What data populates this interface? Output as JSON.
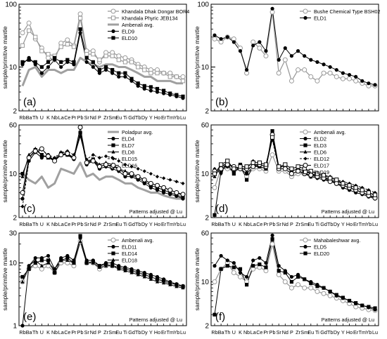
{
  "figure": {
    "xticks": [
      "Rb",
      "Ba",
      "Th",
      "U",
      "K",
      "Nb",
      "La",
      "Ce",
      "Pr",
      "Pb",
      "Sr",
      "Nd",
      "P",
      "Zr",
      "Sm",
      "Eu",
      "Ti",
      "Gd",
      "Tb",
      "Dy",
      "Y",
      "Ho",
      "Er",
      "Tm",
      "Yb",
      "Lu"
    ],
    "ylabel": "sample/primitive mantle",
    "note": "Patterns adjusted @ Lu"
  },
  "chart_data": [
    {
      "type": "line",
      "panel": "(a)",
      "yscale": "log",
      "ylim": [
        2,
        100
      ],
      "yticks": [
        {
          "v": 2,
          "label": "2"
        },
        {
          "v": 10,
          "label": "10"
        },
        {
          "v": 100,
          "label": "100"
        }
      ],
      "show_xticks": true,
      "note": "",
      "series": [
        {
          "name": "Khandala Dhak Dongar BOR4",
          "style": "gray",
          "marker": "open-circle",
          "values": [
            35,
            50,
            28,
            20,
            14,
            13,
            24,
            27,
            22,
            70,
            18,
            18,
            12,
            17,
            17,
            15,
            14,
            13,
            11,
            10,
            9,
            9,
            8,
            8,
            7,
            7
          ]
        },
        {
          "name": "Khandala Phyric JEB134",
          "style": "gray",
          "marker": "open-square",
          "values": [
            22,
            38,
            30,
            18,
            16,
            15,
            21,
            23,
            21,
            60,
            16,
            16,
            13,
            15,
            15,
            13,
            12,
            12,
            10,
            9,
            8,
            8,
            8,
            7,
            7,
            6
          ]
        },
        {
          "name": "Ambenali avg.",
          "style": "thick-gray",
          "marker": "none",
          "values": [
            5,
            9,
            10,
            7,
            9,
            9,
            8,
            9,
            9,
            14,
            12,
            11,
            10,
            11,
            11,
            10,
            10,
            9,
            8,
            7,
            7,
            6,
            6,
            6,
            5.5,
            5.5
          ]
        },
        {
          "name": "ELD9",
          "style": "black",
          "marker": "filled-circle",
          "values": [
            11,
            14,
            11,
            8,
            10,
            13,
            10,
            12,
            11,
            35,
            12,
            10,
            8,
            9,
            8,
            7,
            7,
            6,
            5,
            4.5,
            4.2,
            4,
            3.8,
            3.6,
            3.4,
            3.2
          ]
        },
        {
          "name": "ELD10",
          "style": "black",
          "marker": "filled-square",
          "values": [
            12,
            13,
            12,
            10,
            12,
            14,
            12,
            13,
            12,
            40,
            14,
            12,
            9,
            10,
            9,
            8,
            8,
            6.5,
            5.5,
            5,
            4.8,
            4.5,
            4.2,
            3.8,
            3.6,
            3.4
          ]
        }
      ]
    },
    {
      "type": "line",
      "panel": "(b)",
      "yscale": "log",
      "ylim": [
        2,
        100
      ],
      "yticks": [
        {
          "v": 2,
          "label": "2"
        },
        {
          "v": 10,
          "label": "10"
        },
        {
          "v": 100,
          "label": "100"
        }
      ],
      "show_xticks": false,
      "note": "",
      "series": [
        {
          "name": "Bushe Chemical Type BSH02",
          "style": "gray",
          "marker": "open-circle",
          "values": [
            28,
            25,
            30,
            28,
            20,
            8,
            25,
            20,
            15,
            75,
            8,
            13,
            6,
            9,
            9,
            7,
            6,
            8,
            8,
            7,
            6.5,
            6.5,
            6,
            5.5,
            5,
            5
          ]
        },
        {
          "name": "ELD1",
          "style": "black",
          "marker": "filled-circle",
          "values": [
            32,
            28,
            30,
            25,
            18,
            9,
            22,
            25,
            18,
            85,
            13,
            20,
            15,
            18,
            15,
            13,
            12,
            11,
            10,
            9,
            8,
            7.5,
            7,
            6,
            5.5,
            5.2
          ]
        }
      ]
    },
    {
      "type": "line",
      "panel": "(c)",
      "yscale": "log",
      "ylim": [
        2,
        60
      ],
      "yticks": [
        {
          "v": 2,
          "label": "2"
        },
        {
          "v": 10,
          "label": "10"
        },
        {
          "v": 60,
          "label": "60"
        }
      ],
      "show_xticks": true,
      "note": "Patterns adjusted @ Lu",
      "series": [
        {
          "name": "Poladpur avg.",
          "style": "thick-gray",
          "marker": "none",
          "values": [
            10,
            8,
            7,
            9,
            6,
            7,
            12,
            11,
            10,
            15,
            9,
            10,
            8,
            9,
            9,
            8,
            7,
            7,
            6,
            5.5,
            5,
            5,
            4.5,
            4.2,
            4,
            4
          ]
        },
        {
          "name": "ELD4",
          "style": "black",
          "marker": "filled-circle",
          "values": [
            4,
            16,
            22,
            18,
            20,
            16,
            20,
            20,
            17,
            45,
            14,
            16,
            12,
            13,
            12,
            11,
            9,
            9,
            8,
            7,
            6,
            5.5,
            5,
            4.7,
            4.4,
            4
          ]
        },
        {
          "name": "ELD7",
          "style": "black",
          "marker": "filled-square",
          "values": [
            10,
            18,
            24,
            20,
            18,
            17,
            21,
            20,
            18,
            45,
            15,
            17,
            13,
            14,
            13,
            12,
            10,
            9.5,
            8.5,
            7.5,
            6.5,
            6,
            5.5,
            5,
            4.6,
            4.2
          ]
        },
        {
          "name": "ELD8",
          "style": "black",
          "marker": "filled-triangle",
          "values": [
            9,
            20,
            25,
            20,
            18,
            16,
            22,
            21,
            18,
            40,
            16,
            17,
            14,
            15,
            14,
            12,
            11,
            10,
            9,
            8,
            7,
            6.5,
            6,
            5.5,
            5,
            4.5
          ]
        },
        {
          "name": "ELD15",
          "style": "black-dash",
          "marker": "filled-diamond",
          "values": [
            3,
            16,
            22,
            24,
            20,
            18,
            22,
            23,
            20,
            40,
            17,
            20,
            18,
            19,
            18,
            16,
            14,
            13,
            12,
            11,
            10,
            9,
            8.5,
            8,
            7.5,
            7
          ]
        },
        {
          "name": "ELD16",
          "style": "black",
          "marker": "open-circle",
          "values": [
            5,
            18,
            23,
            25,
            19,
            16,
            20,
            21,
            18,
            55,
            15,
            16,
            13,
            14,
            13,
            12,
            10,
            10,
            9,
            8,
            7,
            6.5,
            6,
            5.5,
            5,
            4.7
          ]
        }
      ]
    },
    {
      "type": "line",
      "panel": "(d)",
      "yscale": "log",
      "ylim": [
        2,
        60
      ],
      "yticks": [
        {
          "v": 2,
          "label": "2"
        },
        {
          "v": 10,
          "label": "10"
        },
        {
          "v": 60,
          "label": "60"
        }
      ],
      "show_xticks": true,
      "note": "Patterns adjusted @ Lu",
      "series": [
        {
          "name": "Ambenali avg.",
          "style": "gray",
          "marker": "open-circle",
          "values": [
            6,
            12,
            12,
            11,
            12,
            9,
            12,
            12,
            11,
            20,
            11,
            11,
            9,
            10,
            10,
            9,
            9,
            8.5,
            8,
            7,
            6.5,
            6,
            5.5,
            5,
            4.5,
            4.2
          ]
        },
        {
          "name": "ELD2",
          "style": "black",
          "marker": "filled-circle",
          "values": [
            10,
            14,
            13,
            11,
            12,
            10,
            13,
            13,
            12,
            40,
            12,
            12,
            10,
            11,
            10,
            9,
            8.5,
            8,
            7.5,
            7,
            6,
            5.5,
            5,
            4.7,
            4.3,
            4
          ]
        },
        {
          "name": "ELD3",
          "style": "black",
          "marker": "filled-square",
          "values": [
            2.2,
            11,
            14,
            10,
            14,
            8,
            14,
            13,
            12,
            48,
            13,
            13,
            11,
            12,
            11,
            10,
            9,
            8.5,
            8,
            7,
            6.5,
            6,
            5.5,
            5,
            4.6,
            4.2
          ]
        },
        {
          "name": "ELD6",
          "style": "black",
          "marker": "filled-triangle",
          "values": [
            9,
            13,
            15,
            12,
            13,
            11,
            14,
            14,
            13,
            36,
            13,
            13,
            11,
            12,
            11,
            10,
            9.5,
            9,
            8,
            7.5,
            7,
            6.5,
            6,
            5.5,
            5,
            4.5
          ]
        },
        {
          "name": "ELD12",
          "style": "black-dash",
          "marker": "filled-diamond",
          "values": [
            12,
            10,
            15,
            10,
            14,
            12,
            16,
            15,
            14,
            35,
            12,
            14,
            12,
            13,
            12,
            11,
            10,
            9.5,
            9,
            8,
            7.5,
            7,
            6.5,
            6,
            5.5,
            5
          ]
        },
        {
          "name": "ELD17",
          "style": "black",
          "marker": "open-circle",
          "values": [
            11,
            12,
            14,
            13,
            12,
            12,
            13,
            14,
            13,
            42,
            12,
            12,
            10,
            11,
            10,
            9.5,
            9,
            8.5,
            7.5,
            7,
            6.5,
            6,
            5.5,
            5,
            4.5,
            4.1
          ]
        },
        {
          "name": "ELD19",
          "style": "black",
          "marker": "open-square",
          "values": [
            10,
            14,
            16,
            12,
            13,
            13,
            15,
            15,
            14,
            38,
            13,
            14,
            12,
            13,
            12,
            11,
            10,
            9.5,
            8.5,
            8,
            7,
            6.5,
            6,
            5.5,
            5,
            4.6
          ]
        }
      ]
    },
    {
      "type": "line",
      "panel": "(e)",
      "yscale": "log",
      "ylim": [
        1,
        30
      ],
      "yticks": [
        {
          "v": 1,
          "label": "1"
        },
        {
          "v": 10,
          "label": "10"
        },
        {
          "v": 30,
          "label": "30"
        }
      ],
      "show_xticks": true,
      "note": "Patterns adjusted @ Lu",
      "series": [
        {
          "name": "Ambenali avg.",
          "style": "gray",
          "marker": "open-circle",
          "values": [
            5,
            8,
            9,
            8,
            9,
            7,
            10,
            10,
            9,
            22,
            10,
            10,
            8,
            9,
            9,
            8.5,
            8,
            7.5,
            7,
            6.5,
            6,
            5.5,
            5,
            4.8,
            4.5,
            4.2
          ]
        },
        {
          "name": "ELD11",
          "style": "black",
          "marker": "filled-circle",
          "values": [
            1,
            9,
            12,
            12,
            13,
            8,
            12,
            13,
            11,
            25,
            11,
            11,
            9,
            10,
            10,
            9,
            8.5,
            8,
            7.5,
            7,
            6.5,
            6,
            5.5,
            5,
            4.6,
            4.3
          ]
        },
        {
          "name": "ELD14",
          "style": "black",
          "marker": "filled-square",
          "values": [
            6,
            8,
            10,
            11,
            11,
            7,
            11,
            12,
            10,
            27,
            10,
            10.5,
            9,
            9.5,
            9,
            8.5,
            8,
            7.5,
            7,
            6.5,
            6,
            5.5,
            5.2,
            4.8,
            4.5,
            4.2
          ]
        },
        {
          "name": "ELD18",
          "style": "black",
          "marker": "filled-triangle",
          "values": [
            5,
            9,
            11,
            9,
            10,
            8,
            11,
            11,
            10,
            22,
            10,
            10,
            8.5,
            9,
            9,
            8,
            7.5,
            7,
            6.5,
            6,
            5.5,
            5,
            4.8,
            4.5,
            4.2,
            4
          ]
        }
      ]
    },
    {
      "type": "line",
      "panel": "(f)",
      "yscale": "log",
      "ylim": [
        2,
        60
      ],
      "yticks": [
        {
          "v": 2,
          "label": "2"
        },
        {
          "v": 10,
          "label": "10"
        },
        {
          "v": 60,
          "label": "60"
        }
      ],
      "show_xticks": true,
      "note": "Patterns adjusted @ Lu",
      "series": [
        {
          "name": "Mahabaleshwar avg.",
          "style": "gray",
          "marker": "open-circle",
          "values": [
            10,
            16,
            20,
            14,
            12,
            10,
            16,
            17,
            15,
            40,
            13,
            10,
            8,
            9,
            8,
            8,
            7,
            6.5,
            6,
            5.5,
            5,
            4.5,
            4,
            3.8,
            3.6,
            3.5
          ]
        },
        {
          "name": "ELD5",
          "style": "black",
          "marker": "filled-circle",
          "values": [
            18,
            26,
            22,
            20,
            14,
            12,
            22,
            24,
            20,
            55,
            18,
            15,
            12,
            13,
            11,
            10,
            9,
            8,
            7,
            6,
            5.5,
            5,
            4.5,
            4.2,
            3.9,
            3.6
          ]
        },
        {
          "name": "ELD20",
          "style": "black",
          "marker": "filled-square",
          "values": [
            3,
            16,
            18,
            17,
            16,
            9,
            18,
            19,
            17,
            48,
            15,
            14,
            10,
            12,
            11,
            9.5,
            8.5,
            8,
            7,
            6.2,
            5.6,
            5,
            4.6,
            4.2,
            4,
            3.8
          ]
        }
      ]
    }
  ]
}
